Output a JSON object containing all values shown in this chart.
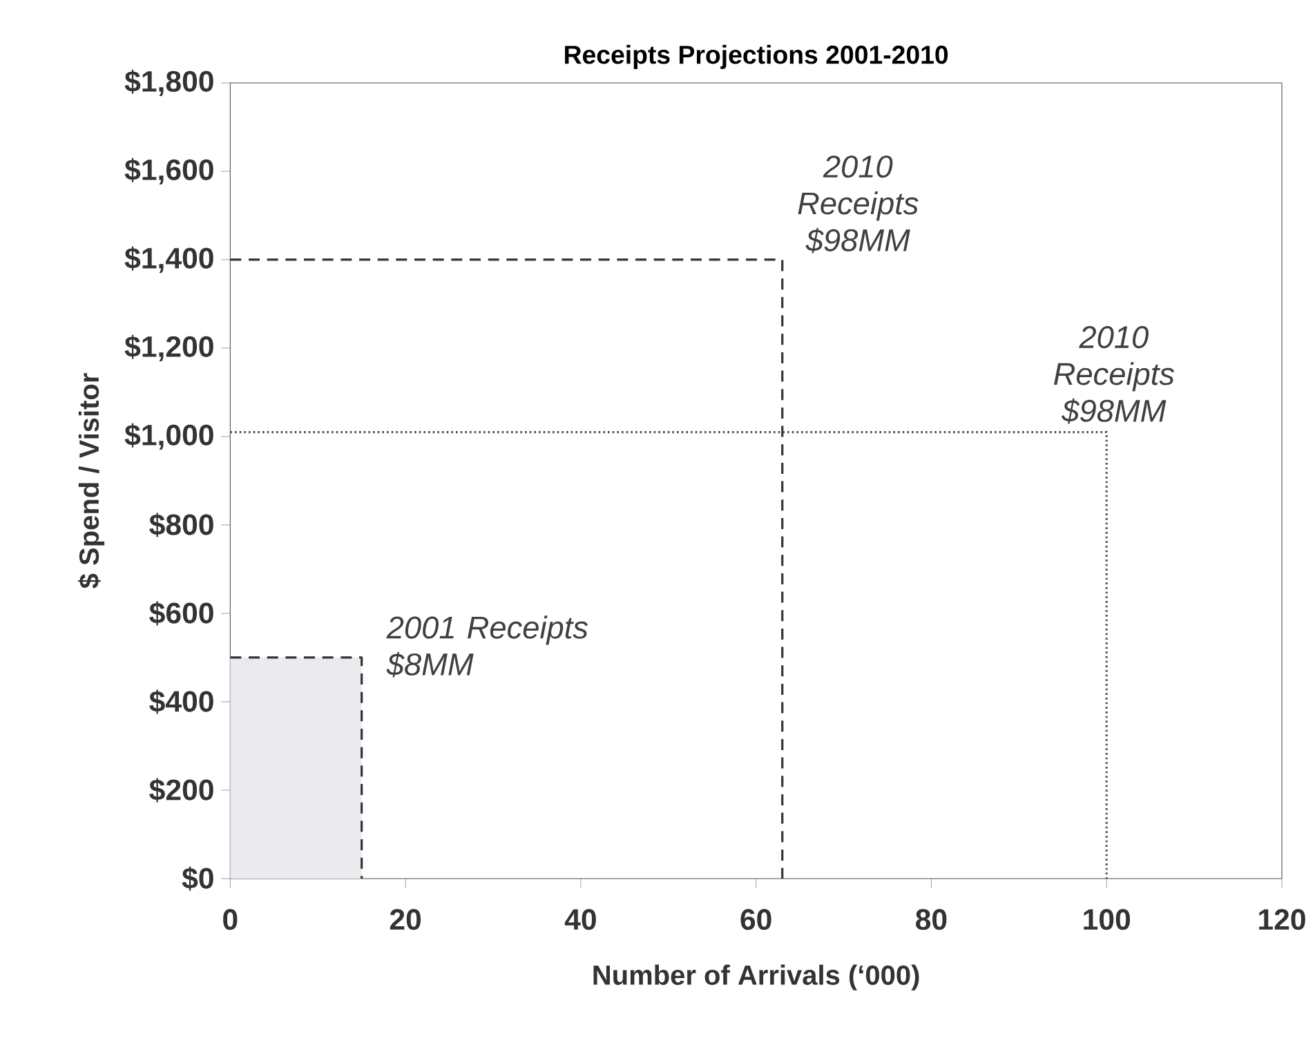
{
  "chart_data": {
    "type": "line",
    "title": "Receipts Projections 2001-2010",
    "xlabel": "Number of Arrivals (‘000)",
    "ylabel": "$ Spend / Visitor",
    "xlim": [
      0,
      120
    ],
    "xticks": [
      0,
      20,
      40,
      60,
      80,
      100,
      120
    ],
    "ylim": [
      0,
      1800
    ],
    "yticks": [
      {
        "value": 0,
        "label": "$0"
      },
      {
        "value": 200,
        "label": "$200"
      },
      {
        "value": 400,
        "label": "$400"
      },
      {
        "value": 600,
        "label": "$600"
      },
      {
        "value": 800,
        "label": "$800"
      },
      {
        "value": 1000,
        "label": "$1,000"
      },
      {
        "value": 1200,
        "label": "$1,200"
      },
      {
        "value": 1400,
        "label": "$1,400"
      },
      {
        "value": 1600,
        "label": "$1,600"
      },
      {
        "value": 1800,
        "label": "$1,800"
      }
    ],
    "series": [
      {
        "type": "area",
        "color": "#ebebef",
        "line_style": "dashed",
        "x": [
          0,
          15,
          15
        ],
        "values": [
          500,
          500,
          0
        ]
      },
      {
        "color": "#333333",
        "line_style": "dashed",
        "x": [
          0,
          63,
          63
        ],
        "values": [
          1400,
          1400,
          0
        ]
      },
      {
        "color": "#555555",
        "line_style": "dotted",
        "x": [
          0,
          100,
          100
        ],
        "values": [
          1010,
          1010,
          0
        ]
      }
    ],
    "annotations": [
      {
        "text": "2001 Receipts $8MM",
        "x": 15,
        "y": 500
      },
      {
        "text": "2010 Receipts $98MM",
        "x": 63,
        "y": 1400
      },
      {
        "text": "2010 Receipts $98MM",
        "x": 100,
        "y": 1010
      }
    ]
  }
}
